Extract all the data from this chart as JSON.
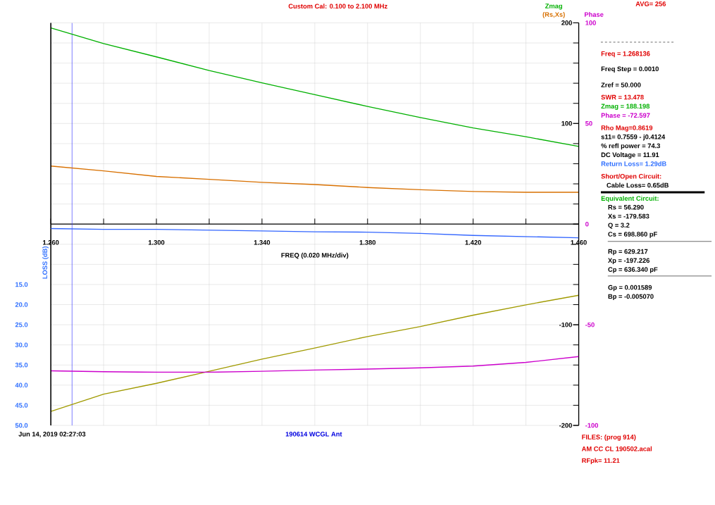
{
  "chart_data": {
    "type": "line",
    "title": "Custom Cal:  0.100 to 2.100 MHz",
    "xlabel": "FREQ (0.020 MHz/div)",
    "ylabel": "(Rs,Xs)",
    "y2label": "Phase",
    "y3label": "LOSS (dB)",
    "x": [
      1.26,
      1.28,
      1.3,
      1.32,
      1.34,
      1.36,
      1.38,
      1.4,
      1.42,
      1.44,
      1.46
    ],
    "series": [
      {
        "name": "Zmag",
        "color": "#00b000",
        "axis": "y",
        "values": [
          194.9,
          179.4,
          166.2,
          152.6,
          140.4,
          128.7,
          116.9,
          105.9,
          95.6,
          86.8,
          77.2
        ]
      },
      {
        "color": "#d87000",
        "axis": "y",
        "values": [
          57.7,
          52.9,
          47.4,
          44.5,
          41.5,
          39.3,
          36.4,
          34.2,
          32.4,
          31.6,
          31.6
        ]
      },
      {
        "color": "#a09a00",
        "axis": "y",
        "values": [
          -186.1,
          -168.9,
          -158.2,
          -146.2,
          -134.1,
          -123.1,
          -111.7,
          -101.8,
          -90.5,
          -80.2,
          -70.7
        ]
      },
      {
        "color": "#cc00cc",
        "axis": "y2",
        "values": [
          -72.9,
          -73.3,
          -73.6,
          -73.6,
          -73.1,
          -72.5,
          -72.0,
          -71.4,
          -70.5,
          -68.7,
          -65.8
        ]
      },
      {
        "color": "#3366ff",
        "axis": "y3",
        "values": [
          1.1,
          1.3,
          1.3,
          1.5,
          1.7,
          1.9,
          2.0,
          2.3,
          2.8,
          3.1,
          3.4
        ]
      }
    ],
    "xlim": [
      1.26,
      1.46
    ],
    "xticks": [
      {
        "value": 1.26,
        "label": "1.260"
      },
      {
        "value": 1.28,
        "label": null
      },
      {
        "value": 1.3,
        "label": "1.300"
      },
      {
        "value": 1.32,
        "label": null
      },
      {
        "value": 1.34,
        "label": "1.340"
      },
      {
        "value": 1.36,
        "label": null
      },
      {
        "value": 1.38,
        "label": "1.380"
      },
      {
        "value": 1.4,
        "label": null
      },
      {
        "value": 1.42,
        "label": "1.420"
      },
      {
        "value": 1.44,
        "label": null
      },
      {
        "value": 1.46,
        "label": "1.460"
      }
    ],
    "ylim": [
      -200,
      200
    ],
    "yticks": [
      -200,
      {
        "value": -180,
        "label": null
      },
      {
        "value": -160,
        "label": null
      },
      {
        "value": -140,
        "label": null
      },
      {
        "value": -120,
        "label": null
      },
      -100,
      {
        "value": -80,
        "label": null
      },
      {
        "value": -60,
        "label": null
      },
      {
        "value": -40,
        "label": null
      },
      {
        "value": -20,
        "label": null
      },
      {
        "value": 0,
        "label": null
      },
      {
        "value": 20,
        "label": null
      },
      {
        "value": 40,
        "label": null
      },
      {
        "value": 60,
        "label": null
      },
      {
        "value": 80,
        "label": null
      },
      100,
      {
        "value": 120,
        "label": null
      },
      {
        "value": 140,
        "label": null
      },
      {
        "value": 160,
        "label": null
      },
      {
        "value": 180,
        "label": null
      },
      200
    ],
    "y2lim": [
      -100,
      100
    ],
    "y2ticks": [
      -100,
      -50,
      0,
      50,
      100
    ],
    "y3lim": [
      50,
      -50
    ],
    "y3ticks": [
      {
        "value": 15,
        "label": "15.0"
      },
      {
        "value": 20,
        "label": "20.0"
      },
      {
        "value": 25,
        "label": "25.0"
      },
      {
        "value": 30,
        "label": "30.0"
      },
      {
        "value": 35,
        "label": "35.0"
      },
      {
        "value": 40,
        "label": "40.0"
      },
      {
        "value": 45,
        "label": "45.0"
      },
      {
        "value": 50,
        "label": "50.0"
      }
    ],
    "grid": true,
    "ref_lines": [
      {
        "axis": "x",
        "value": 1.268,
        "color": "#3333ff"
      }
    ],
    "annotations": [
      "AVG=  256",
      "Freq = 1.268136",
      "Freq Step = 0.0010",
      "Zref =   50.000",
      "SWR  =  13.478",
      "Zmag = 188.198",
      "Phase =  -72.597",
      "Rho Mag=0.8619",
      "s11= 0.7559 - j0.4124",
      "% refl power = 74.3",
      "DC Voltage =  11.91",
      "Return Loss=  1.29dB",
      "Short/Open Circuit:",
      "Cable Loss=  0.65dB",
      "Equivalent Circuit:",
      "Rs =   56.290",
      "Xs = -179.583",
      "Q =  3.2",
      "Cs =  698.860  pF",
      "Rp =  629.217",
      "Xp = -197.226",
      "Cp =  636.340  pF",
      "Gp =  0.001589",
      "Bp = -0.005070",
      "Jun 14, 2019  02:27:03",
      "190614 WCGL Ant",
      "FILES:  (prog 914)",
      "AM CC CL 190502.acal",
      "RFpk= 11.21"
    ]
  }
}
